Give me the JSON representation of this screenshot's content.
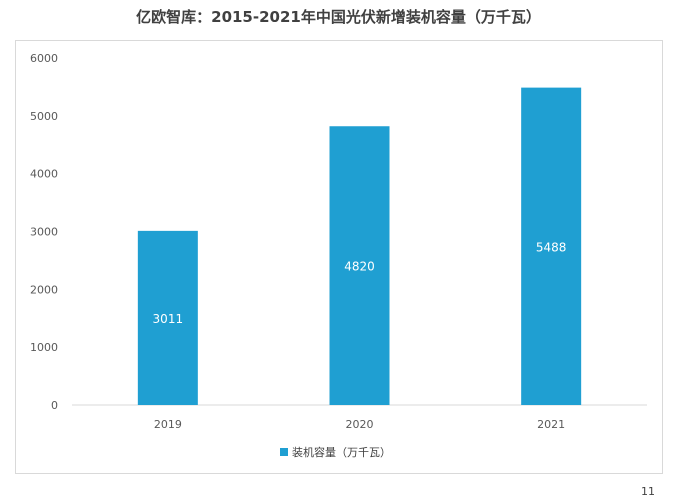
{
  "chart_data": {
    "type": "bar",
    "title": "亿欧智库：2015-2021年中国光伏新增装机容量（万千瓦）",
    "categories": [
      "2019",
      "2020",
      "2021"
    ],
    "series": [
      {
        "name": "装机容量（万千瓦）",
        "values": [
          3011,
          4820,
          5488
        ]
      }
    ],
    "ylim": [
      0,
      6000
    ],
    "yticks": [
      0,
      1000,
      2000,
      3000,
      4000,
      5000,
      6000
    ],
    "grid": false,
    "legend": "bottom",
    "bar_color": "#1f9fd2",
    "data_label_color": "#ffffff"
  },
  "page_number": "11"
}
